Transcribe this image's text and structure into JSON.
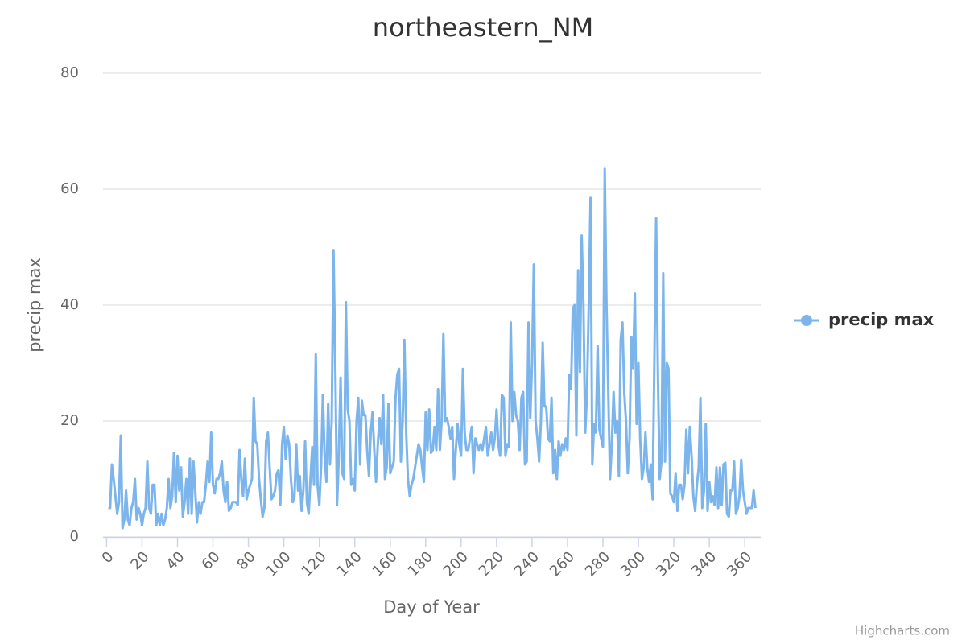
{
  "chart_data": {
    "type": "line",
    "title": "northeastern_NM",
    "x_label": "Day of Year",
    "y_label": "precip max",
    "credits": "Highcharts.com",
    "legend": "right",
    "grid": true,
    "xlim": [
      -2,
      369
    ],
    "ylim": [
      0,
      80
    ],
    "xticks": [
      0,
      20,
      40,
      60,
      80,
      100,
      120,
      140,
      160,
      180,
      200,
      220,
      240,
      260,
      280,
      300,
      320,
      340,
      360
    ],
    "yticks": [
      0,
      20,
      40,
      60,
      80
    ],
    "x": [
      1,
      2,
      3,
      4,
      5,
      6,
      7,
      8,
      9,
      10,
      11,
      12,
      13,
      14,
      15,
      16,
      17,
      18,
      19,
      20,
      21,
      22,
      23,
      24,
      25,
      26,
      27,
      28,
      29,
      30,
      31,
      32,
      33,
      34,
      35,
      36,
      37,
      38,
      39,
      40,
      41,
      42,
      43,
      44,
      45,
      46,
      47,
      48,
      49,
      50,
      51,
      52,
      53,
      54,
      55,
      56,
      57,
      58,
      59,
      60,
      61,
      62,
      63,
      64,
      65,
      66,
      67,
      68,
      69,
      70,
      71,
      72,
      73,
      74,
      75,
      76,
      77,
      78,
      79,
      80,
      81,
      82,
      83,
      84,
      85,
      86,
      87,
      88,
      89,
      90,
      91,
      92,
      93,
      94,
      95,
      96,
      97,
      98,
      99,
      100,
      101,
      102,
      103,
      104,
      105,
      106,
      107,
      108,
      109,
      110,
      111,
      112,
      113,
      114,
      115,
      116,
      117,
      118,
      119,
      120,
      121,
      122,
      123,
      124,
      125,
      126,
      127,
      128,
      129,
      130,
      131,
      132,
      133,
      134,
      135,
      136,
      137,
      138,
      139,
      140,
      141,
      142,
      143,
      144,
      145,
      146,
      147,
      148,
      149,
      150,
      151,
      152,
      153,
      154,
      155,
      156,
      157,
      158,
      159,
      160,
      161,
      162,
      163,
      164,
      165,
      166,
      167,
      168,
      169,
      170,
      171,
      172,
      173,
      174,
      175,
      176,
      177,
      178,
      179,
      180,
      181,
      182,
      183,
      184,
      185,
      186,
      187,
      188,
      189,
      190,
      191,
      192,
      193,
      194,
      195,
      196,
      197,
      198,
      199,
      200,
      201,
      202,
      203,
      204,
      205,
      206,
      207,
      208,
      209,
      210,
      211,
      212,
      213,
      214,
      215,
      216,
      217,
      218,
      219,
      220,
      221,
      222,
      223,
      224,
      225,
      226,
      227,
      228,
      229,
      230,
      231,
      232,
      233,
      234,
      235,
      236,
      237,
      238,
      239,
      240,
      241,
      242,
      243,
      244,
      245,
      246,
      247,
      248,
      249,
      250,
      251,
      252,
      253,
      254,
      255,
      256,
      257,
      258,
      259,
      260,
      261,
      262,
      263,
      264,
      265,
      266,
      267,
      268,
      269,
      270,
      271,
      272,
      273,
      274,
      275,
      276,
      277,
      278,
      279,
      280,
      281,
      282,
      283,
      284,
      285,
      286,
      287,
      288,
      289,
      290,
      291,
      292,
      293,
      294,
      295,
      296,
      297,
      298,
      299,
      300,
      301,
      302,
      303,
      304,
      305,
      306,
      307,
      308,
      309,
      310,
      311,
      312,
      313,
      314,
      315,
      316,
      317,
      318,
      319,
      320,
      321,
      322,
      323,
      324,
      325,
      326,
      327,
      328,
      329,
      330,
      331,
      332,
      333,
      334,
      335,
      336,
      337,
      338,
      339,
      340,
      341,
      342,
      343,
      344,
      345,
      346,
      347,
      348,
      349,
      350,
      351,
      352,
      353,
      354,
      355,
      356,
      357,
      358,
      359,
      360,
      361,
      362,
      363,
      364,
      365,
      366
    ],
    "series": [
      {
        "name": "precip max",
        "color": "#7cb5ec",
        "values": [
          5,
          5,
          12.5,
          10,
          7,
          4,
          6,
          17.5,
          1.5,
          3,
          8,
          3,
          2,
          5,
          6,
          10,
          3,
          5,
          4,
          2,
          4,
          5,
          13,
          5,
          4,
          9,
          9,
          2,
          4,
          2,
          4,
          2,
          3,
          5,
          10,
          5,
          7,
          14.5,
          6,
          14,
          8,
          12,
          3.5,
          6,
          10,
          4,
          13.5,
          4,
          13,
          8,
          2.5,
          6,
          4,
          6,
          6,
          9,
          13,
          9.5,
          18,
          9,
          7.5,
          10,
          10,
          11,
          13,
          8,
          6,
          9.5,
          4.5,
          5,
          6,
          6,
          6,
          5.5,
          15,
          10,
          7,
          13.5,
          6.5,
          8,
          9,
          10,
          24,
          16.5,
          16,
          10,
          6.5,
          3.5,
          5,
          16.5,
          18,
          12,
          6.5,
          7,
          8,
          11,
          11.5,
          5.5,
          16,
          19,
          13.5,
          17.5,
          16,
          10,
          6,
          7,
          16,
          8,
          10.5,
          4.5,
          8,
          16.5,
          6,
          4,
          10,
          15.5,
          9,
          31.5,
          9,
          5.5,
          12,
          24.5,
          14,
          9.5,
          23,
          12.5,
          20,
          49.5,
          30,
          5.5,
          14,
          27.5,
          11,
          10,
          40.5,
          22,
          20,
          9,
          10,
          8,
          20,
          24,
          12.5,
          23.5,
          21,
          21,
          15,
          10.5,
          18,
          21.5,
          15,
          9.5,
          16,
          20.5,
          16,
          24.5,
          10,
          12,
          23,
          11,
          12,
          13,
          24,
          28,
          29,
          13,
          20,
          34,
          18,
          10,
          7,
          9,
          10,
          12,
          14,
          16,
          15,
          12,
          9.5,
          21.5,
          15,
          22,
          14.5,
          15,
          19,
          15,
          25.5,
          15,
          20,
          35,
          20,
          20.5,
          19,
          17,
          19,
          10,
          15,
          19.5,
          16,
          14,
          29,
          18,
          15,
          15,
          17,
          19,
          11,
          17,
          16,
          15,
          16,
          15,
          17,
          19,
          14,
          16,
          18,
          15,
          17,
          22,
          16,
          14,
          24.5,
          24,
          14,
          16,
          15.5,
          37,
          20,
          25,
          21,
          20,
          15,
          24,
          25,
          12.5,
          13,
          37,
          20.5,
          30,
          47,
          20,
          17,
          13,
          20,
          33.5,
          22.5,
          22.5,
          17,
          16.5,
          24,
          11,
          15,
          10,
          16.5,
          14,
          16,
          15,
          17,
          15,
          28,
          25.5,
          39.5,
          40,
          17.5,
          46,
          28.5,
          52,
          40,
          18,
          25,
          40,
          58.5,
          12.5,
          19.5,
          18,
          33,
          18.5,
          17,
          15.5,
          63.5,
          40,
          25,
          10,
          16,
          25,
          18,
          20,
          10.5,
          34,
          37,
          25,
          20,
          11,
          17,
          34.5,
          29,
          42,
          19.5,
          30,
          17,
          10,
          12,
          18,
          12,
          9.5,
          12.5,
          6.5,
          30,
          55,
          28,
          10,
          13,
          45.5,
          13,
          30,
          29,
          7.5,
          7,
          6,
          11,
          4.5,
          9,
          9,
          6.5,
          9,
          18.5,
          11,
          19,
          14,
          7,
          4.5,
          9,
          12,
          24,
          5,
          8,
          19.5,
          4.5,
          9.5,
          6,
          7,
          5.5,
          12,
          5,
          12,
          5.5,
          12.5,
          12.8,
          4,
          3.5,
          8,
          8,
          13,
          4,
          5,
          7,
          13.3,
          8,
          6,
          4,
          5,
          5,
          5,
          8,
          5
        ]
      }
    ]
  }
}
